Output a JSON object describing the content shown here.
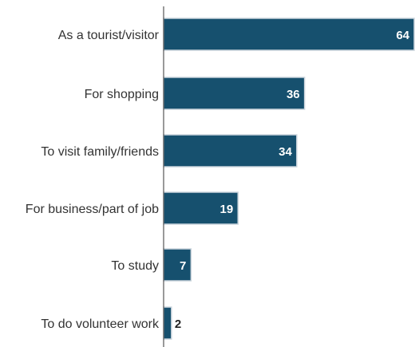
{
  "chart_data": {
    "type": "bar",
    "orientation": "horizontal",
    "categories": [
      "As a tourist/visitor",
      "For shopping",
      "To visit family/friends",
      "For business/part of job",
      "To study",
      "To do volunteer work"
    ],
    "values": [
      64,
      36,
      34,
      19,
      7,
      2
    ],
    "value_labels": [
      "64",
      "36",
      "34",
      "19",
      "7",
      "2"
    ],
    "xlim": [
      0,
      64
    ],
    "grid": false,
    "bar_color": "#16506e",
    "bar_outline_color": "#c9d3db",
    "value_label_color_inside": "#ffffff",
    "value_label_color_outside": "#222222"
  }
}
